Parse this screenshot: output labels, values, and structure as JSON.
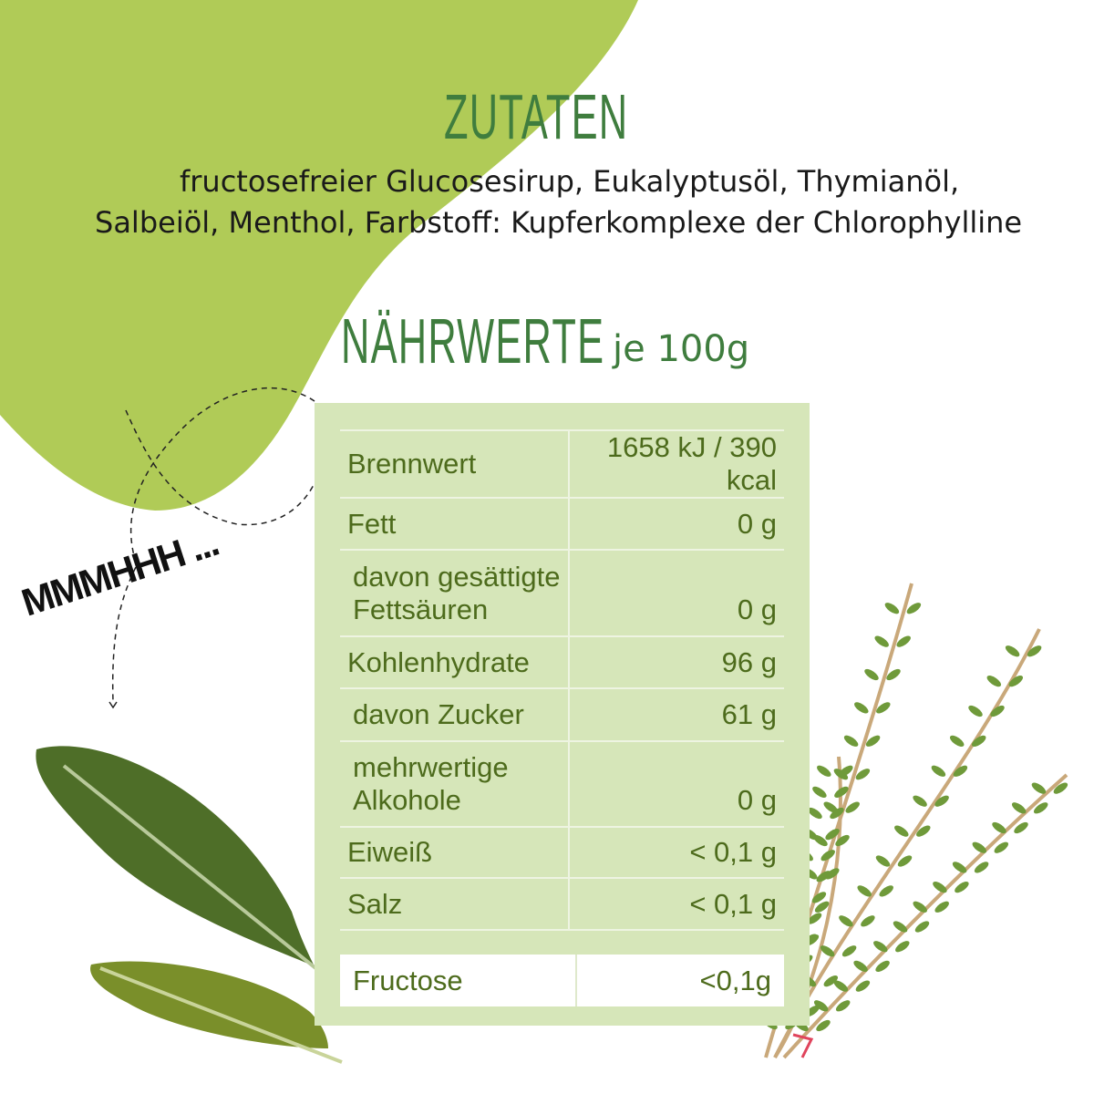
{
  "colors": {
    "blob": "#b0cb57",
    "title": "#3f7d3e",
    "panel": "#d6e6b9",
    "table_text": "#4d6b1c"
  },
  "ingredients": {
    "title": "ZUTATEN",
    "line1": "fructosefreier Glucosesirup, Eukalyptusöl, Thymianöl,",
    "line2": "Salbeiöl, Menthol, Farbstoff: Kupferkomplexe der Chlorophylline"
  },
  "nutrition": {
    "title": "NÄHRWERTE",
    "unit": "je 100g",
    "rows": [
      {
        "label": "Brennwert",
        "value": "1658 kJ / 390 kcal"
      },
      {
        "label": "Fett",
        "value": "0 g"
      },
      {
        "label": "davon gesättigte Fettsäuren",
        "value": "0 g"
      },
      {
        "label": "Kohlenhydrate",
        "value": "96 g"
      },
      {
        "label": "davon Zucker",
        "value": "61 g"
      },
      {
        "label": "mehrwertige Alkohole",
        "value": "0 g"
      },
      {
        "label": "Eiweiß",
        "value": "< 0,1 g"
      },
      {
        "label": "Salz",
        "value": "< 0,1 g"
      }
    ],
    "fructose": {
      "label": "Fructose",
      "value": "<0,1g"
    }
  },
  "doodle": {
    "text": "MMMHHH ..."
  }
}
